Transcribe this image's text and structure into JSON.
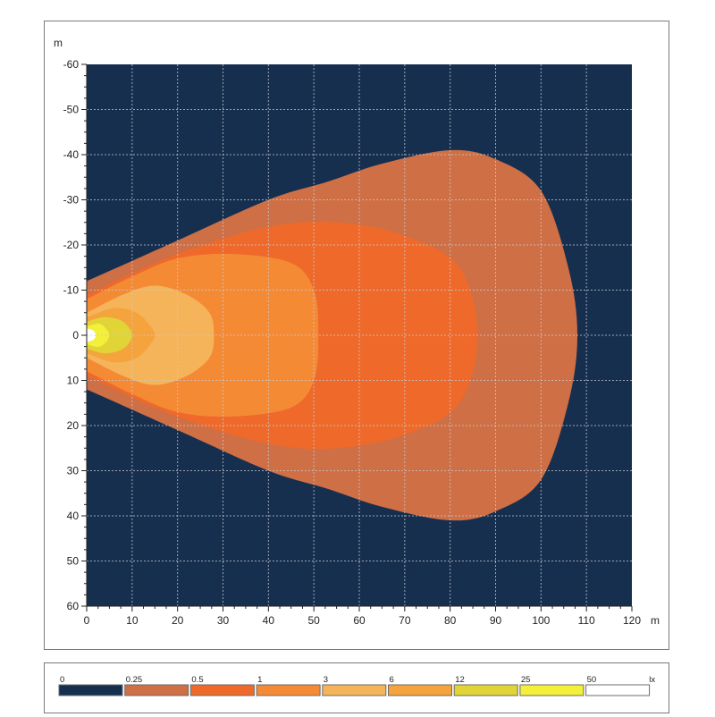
{
  "chart_data": {
    "type": "heatmap",
    "title": "",
    "x_unit": "m",
    "y_unit": "m",
    "xlim": [
      0,
      120
    ],
    "ylim": [
      -60,
      60
    ],
    "y_axis_inverted": true,
    "x_ticks": [
      0,
      10,
      20,
      30,
      40,
      50,
      60,
      70,
      80,
      90,
      100,
      110,
      120
    ],
    "y_ticks": [
      -60,
      -50,
      -40,
      -30,
      -20,
      -10,
      0,
      10,
      20,
      30,
      40,
      50,
      60
    ],
    "grid": true,
    "background_color": "#172f4f",
    "legend": {
      "unit": "lx",
      "placement": "bottom",
      "levels": [
        {
          "label": "0",
          "color": "#172f4f"
        },
        {
          "label": "0.25",
          "color": "#cf6f45"
        },
        {
          "label": "0.5",
          "color": "#ef6a2a"
        },
        {
          "label": "1",
          "color": "#f58a35"
        },
        {
          "label": "3",
          "color": "#f5b45a"
        },
        {
          "label": "6",
          "color": "#f4a33d"
        },
        {
          "label": "12",
          "color": "#e0d436"
        },
        {
          "label": "25",
          "color": "#f3ef3a"
        },
        {
          "label": "50",
          "color": "#ffffff"
        }
      ]
    },
    "isolux_regions": [
      {
        "level": "0.25",
        "color": "#cf6f45",
        "outline": [
          [
            0,
            -12
          ],
          [
            20,
            -21
          ],
          [
            40,
            -30
          ],
          [
            53,
            -34
          ],
          [
            65,
            -38
          ],
          [
            80,
            -41
          ],
          [
            90,
            -39
          ],
          [
            100,
            -32
          ],
          [
            106,
            -15
          ],
          [
            108,
            0
          ],
          [
            106,
            15
          ],
          [
            100,
            32
          ],
          [
            90,
            39
          ],
          [
            80,
            41
          ],
          [
            65,
            38
          ],
          [
            53,
            34
          ],
          [
            40,
            30
          ],
          [
            20,
            21
          ],
          [
            0,
            12
          ]
        ]
      },
      {
        "level": "0.5",
        "color": "#ef6a2a",
        "outline": [
          [
            0,
            -9
          ],
          [
            20,
            -18
          ],
          [
            40,
            -24
          ],
          [
            55,
            -25
          ],
          [
            70,
            -22
          ],
          [
            82,
            -15
          ],
          [
            86,
            0
          ],
          [
            82,
            15
          ],
          [
            70,
            22
          ],
          [
            55,
            25
          ],
          [
            40,
            24
          ],
          [
            20,
            18
          ],
          [
            0,
            9
          ]
        ]
      },
      {
        "level": "1",
        "color": "#f58a35",
        "outline": [
          [
            0,
            -8
          ],
          [
            10,
            -13
          ],
          [
            20,
            -17
          ],
          [
            32,
            -18
          ],
          [
            45,
            -16
          ],
          [
            50,
            -10
          ],
          [
            51,
            0
          ],
          [
            50,
            10
          ],
          [
            45,
            16
          ],
          [
            32,
            18
          ],
          [
            20,
            17
          ],
          [
            10,
            13
          ],
          [
            0,
            8
          ]
        ]
      },
      {
        "level": "3",
        "color": "#f5b45a",
        "outline": [
          [
            0,
            -5
          ],
          [
            8,
            -9
          ],
          [
            15,
            -11
          ],
          [
            22,
            -9
          ],
          [
            27,
            -5
          ],
          [
            28,
            0
          ],
          [
            27,
            5
          ],
          [
            22,
            9
          ],
          [
            15,
            11
          ],
          [
            8,
            9
          ],
          [
            0,
            5
          ]
        ]
      },
      {
        "level": "6",
        "color": "#f4a33d",
        "outline": [
          [
            0,
            -4
          ],
          [
            6,
            -6
          ],
          [
            11,
            -5
          ],
          [
            14,
            -2
          ],
          [
            15,
            0
          ],
          [
            14,
            2
          ],
          [
            11,
            5
          ],
          [
            6,
            6
          ],
          [
            0,
            4
          ]
        ]
      },
      {
        "level": "12",
        "color": "#e0d436",
        "outline": [
          [
            0,
            -3
          ],
          [
            4,
            -4
          ],
          [
            8,
            -3
          ],
          [
            10,
            0
          ],
          [
            8,
            3
          ],
          [
            4,
            4
          ],
          [
            0,
            3
          ]
        ]
      },
      {
        "level": "25",
        "color": "#f3ef3a",
        "outline": [
          [
            0,
            -2
          ],
          [
            3,
            -2.5
          ],
          [
            5,
            0
          ],
          [
            3,
            2.5
          ],
          [
            0,
            2
          ]
        ]
      },
      {
        "level": "50",
        "color": "#ffffff",
        "outline": [
          [
            0,
            -1.5
          ],
          [
            1.5,
            -1
          ],
          [
            2,
            0
          ],
          [
            1.5,
            1
          ],
          [
            0,
            1.5
          ]
        ]
      }
    ]
  }
}
